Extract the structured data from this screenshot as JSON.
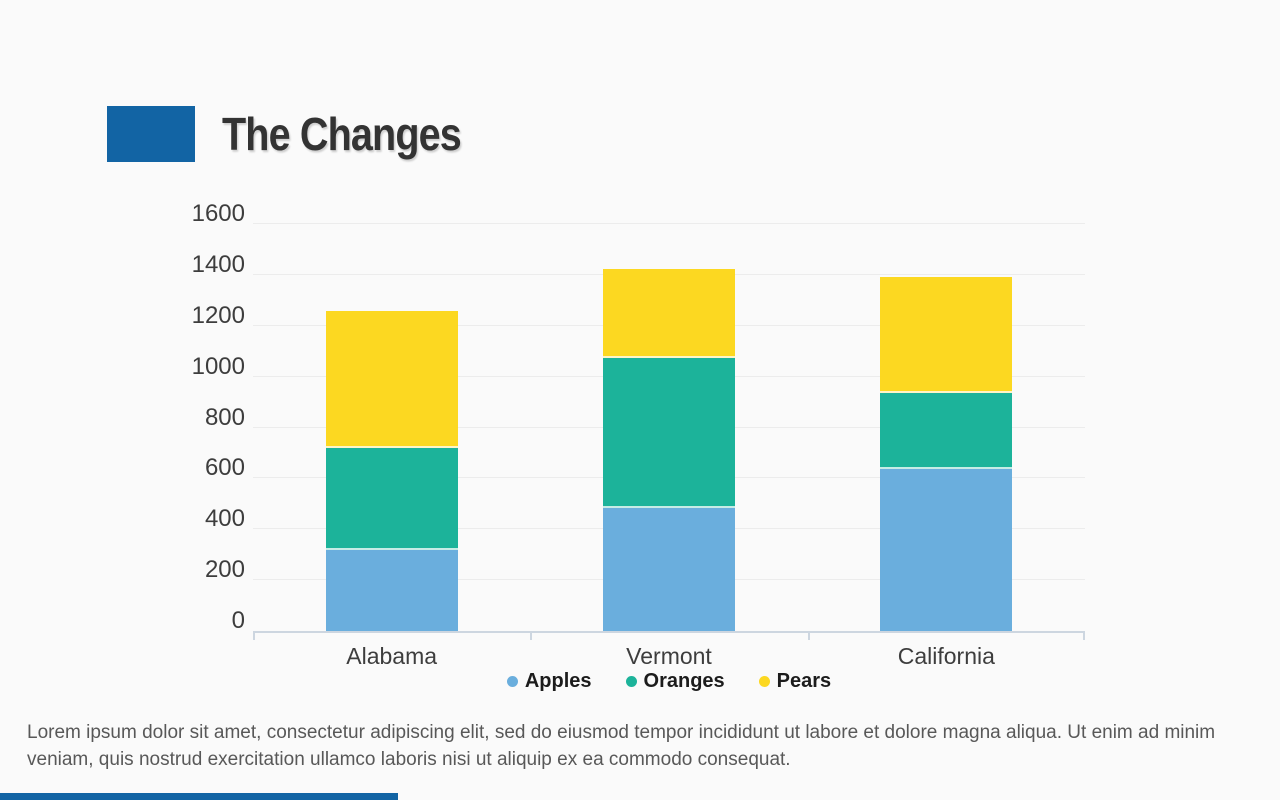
{
  "slide": {
    "title": "The Changes",
    "accent_color": "#1264a4",
    "body_text": "Lorem ipsum dolor sit amet, consectetur adipiscing elit, sed do eiusmod tempor incididunt ut labore et dolore magna aliqua. Ut enim ad minim veniam, quis nostrud exercitation ullamco laboris nisi ut aliquip ex ea commodo consequat."
  },
  "chart_data": {
    "type": "bar",
    "stacked": true,
    "title": "",
    "xlabel": "",
    "ylabel": "",
    "categories": [
      "Alabama",
      "Vermont",
      "California"
    ],
    "series": [
      {
        "name": "Apples",
        "color": "#6aaedd",
        "values": [
          320,
          485,
          635
        ]
      },
      {
        "name": "Oranges",
        "color": "#1cb39a",
        "values": [
          400,
          590,
          300
        ]
      },
      {
        "name": "Pears",
        "color": "#fcd821",
        "values": [
          540,
          350,
          455
        ]
      }
    ],
    "totals": [
      1260,
      1425,
      1390
    ],
    "ylim": [
      0,
      1600
    ],
    "ytick_step": 200,
    "yticks": [
      "0",
      "200",
      "400",
      "600",
      "800",
      "1000",
      "1200",
      "1400",
      "1600"
    ],
    "grid": true,
    "gridline_color": "#ececec",
    "axis_line_color": "#cdd6e0",
    "tick_label_color": "#3d3d3d",
    "legend_position": "bottom"
  }
}
